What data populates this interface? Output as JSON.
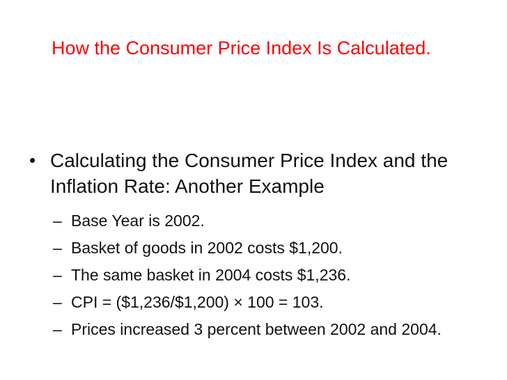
{
  "slide": {
    "title": "How the Consumer Price Index Is Calculated.",
    "title_color": "#ff0000",
    "main_bullet_marker": "•",
    "main_bullet": "Calculating the Consumer Price Index and the Inflation Rate: Another Example",
    "sub_marker": "–",
    "sub_bullets": [
      "Base Year is 2002.",
      "Basket of goods in 2002 costs $1,200.",
      "The same basket in 2004 costs $1,236.",
      "CPI = ($1,236/$1,200) × 100 = 103.",
      "Prices increased 3 percent between 2002 and 2004."
    ]
  }
}
